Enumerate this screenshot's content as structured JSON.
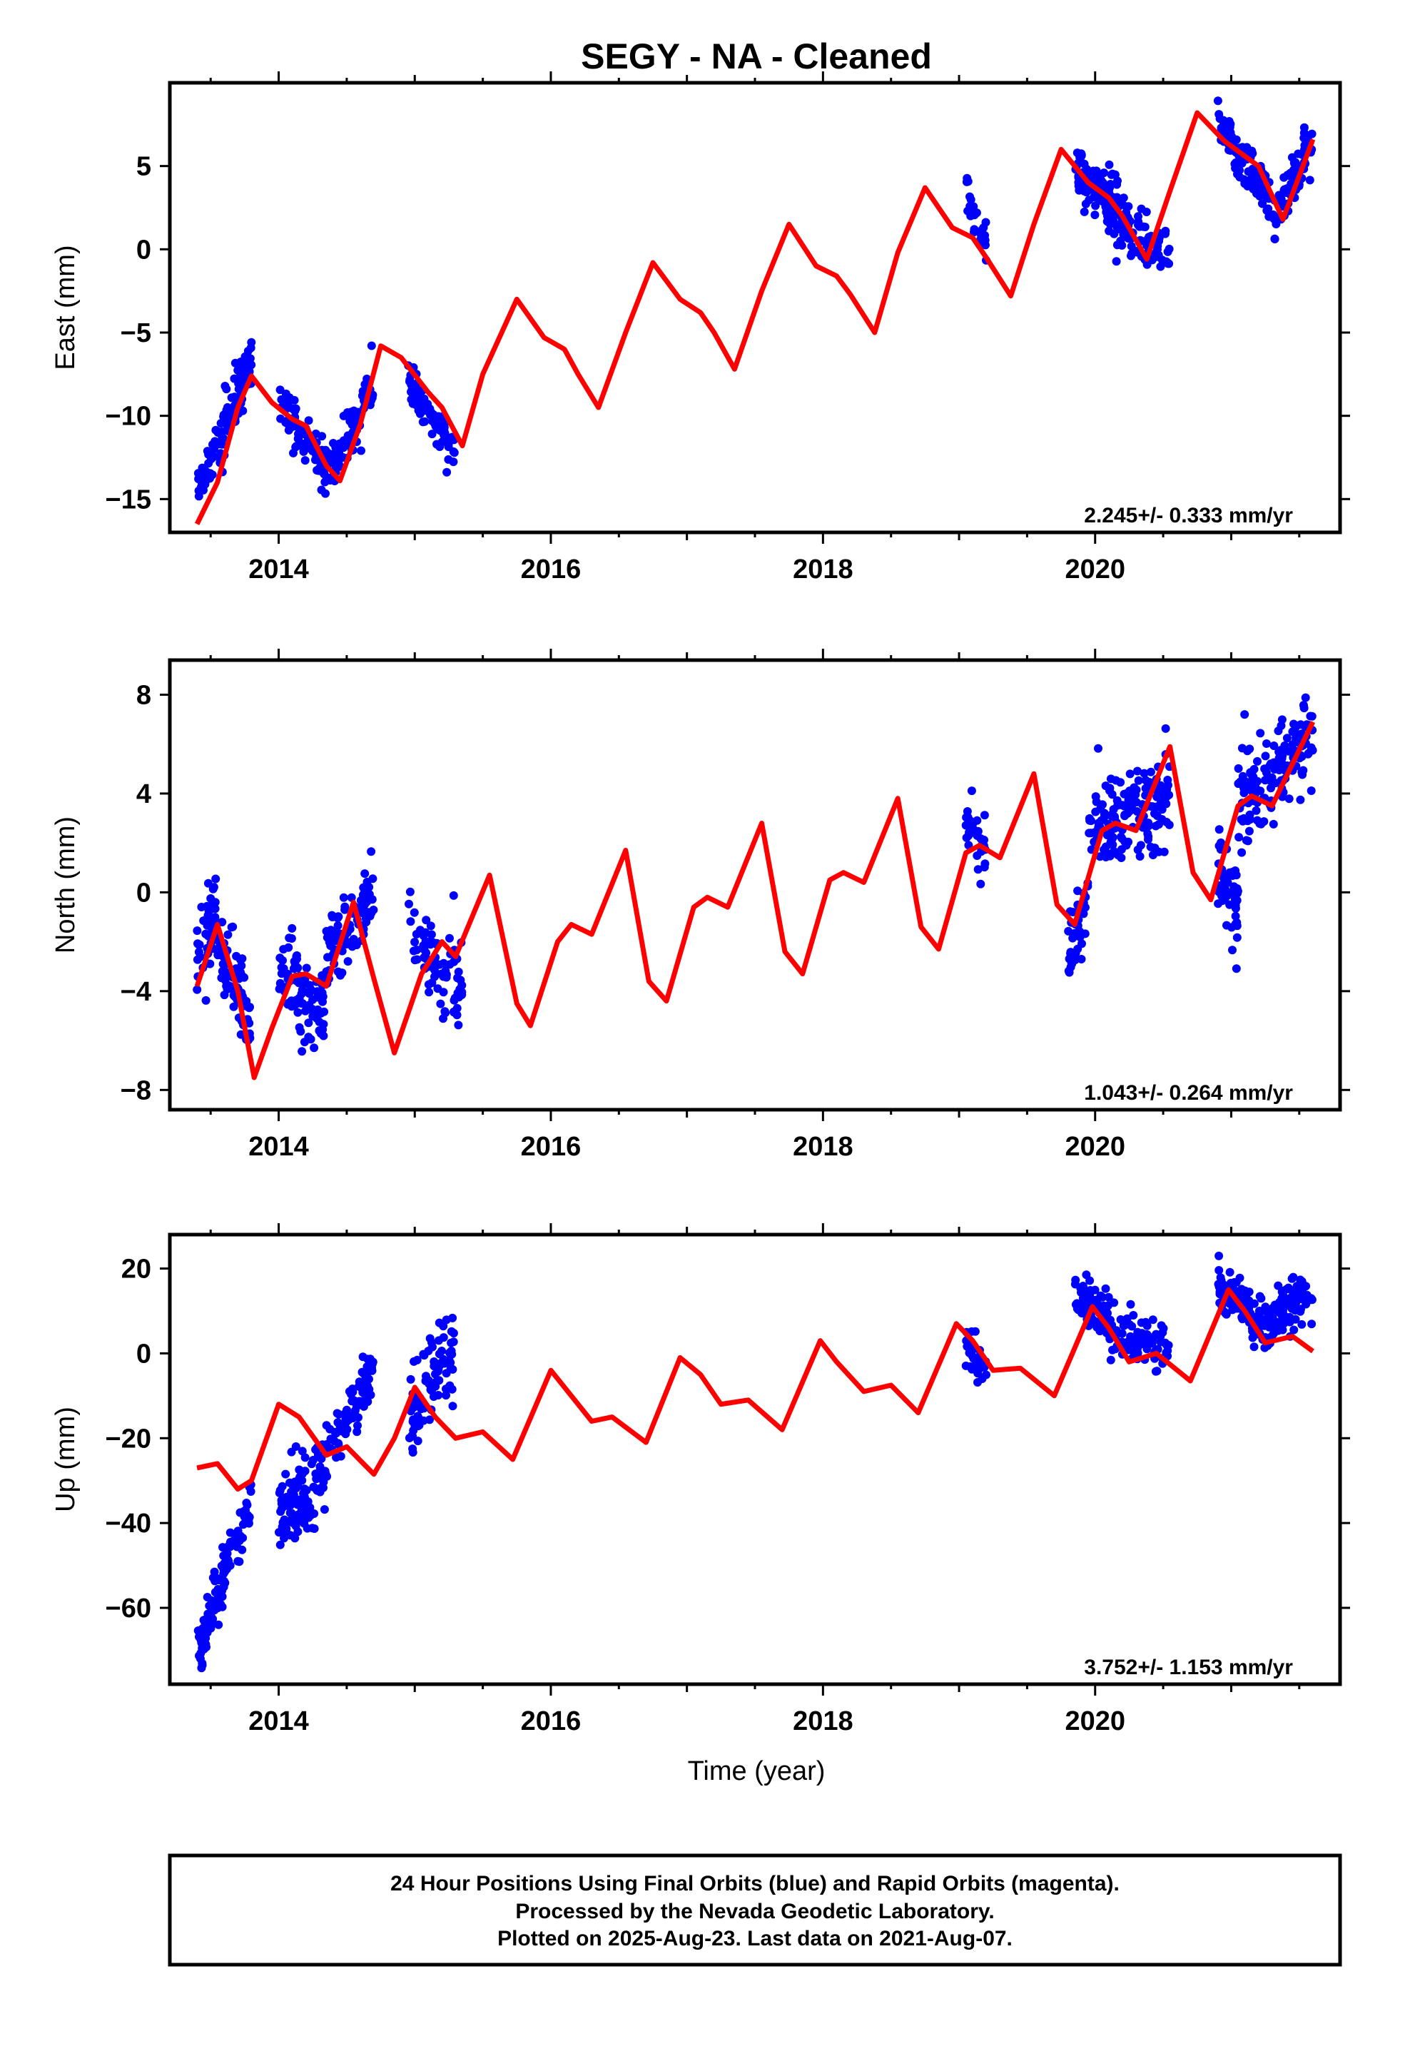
{
  "title": "SEGY  - NA - Cleaned",
  "xlabel": "Time (year)",
  "x_ticks": [
    "2014",
    "2016",
    "2018",
    "2020"
  ],
  "footer": {
    "line1": "24 Hour Positions Using Final Orbits (blue) and Rapid Orbits (magenta).",
    "line2": "Processed by the Nevada Geodetic Laboratory.",
    "line3": "Plotted on 2025-Aug-23. Last data on 2021-Aug-07."
  },
  "colors": {
    "points": "#0000ff",
    "model": "#ff0000",
    "frame": "#000000"
  },
  "chart_data": [
    {
      "type": "scatter",
      "ylabel": "East (mm)",
      "rate": "2.245+/- 0.333 mm/yr",
      "xlim": [
        2013.2,
        2021.8
      ],
      "ylim": [
        -17,
        10
      ],
      "y_ticks": [
        -15,
        -10,
        -5,
        0,
        5
      ],
      "model_line": {
        "color": "#ff0000",
        "points": [
          [
            2013.4,
            -16.5
          ],
          [
            2013.55,
            -14
          ],
          [
            2013.7,
            -9.5
          ],
          [
            2013.8,
            -7.6
          ],
          [
            2013.95,
            -9.2
          ],
          [
            2014.1,
            -10.2
          ],
          [
            2014.2,
            -10.6
          ],
          [
            2014.35,
            -13
          ],
          [
            2014.45,
            -13.9
          ],
          [
            2014.6,
            -10.5
          ],
          [
            2014.75,
            -5.8
          ],
          [
            2014.9,
            -6.5
          ],
          [
            2015.1,
            -8.6
          ],
          [
            2015.2,
            -9.5
          ],
          [
            2015.35,
            -11.8
          ],
          [
            2015.5,
            -7.5
          ],
          [
            2015.75,
            -3
          ],
          [
            2015.95,
            -5.3
          ],
          [
            2016.1,
            -6
          ],
          [
            2016.2,
            -7.5
          ],
          [
            2016.35,
            -9.5
          ],
          [
            2016.55,
            -5
          ],
          [
            2016.75,
            -0.8
          ],
          [
            2016.95,
            -3
          ],
          [
            2017.1,
            -3.8
          ],
          [
            2017.2,
            -5
          ],
          [
            2017.35,
            -7.2
          ],
          [
            2017.55,
            -2.5
          ],
          [
            2017.75,
            1.5
          ],
          [
            2017.95,
            -1
          ],
          [
            2018.1,
            -1.6
          ],
          [
            2018.2,
            -2.7
          ],
          [
            2018.38,
            -5
          ],
          [
            2018.55,
            -0.2
          ],
          [
            2018.75,
            3.7
          ],
          [
            2018.95,
            1.3
          ],
          [
            2019.1,
            0.7
          ],
          [
            2019.2,
            -0.5
          ],
          [
            2019.38,
            -2.8
          ],
          [
            2019.55,
            1.5
          ],
          [
            2019.75,
            6
          ],
          [
            2019.95,
            4
          ],
          [
            2020.1,
            3.1
          ],
          [
            2020.2,
            2
          ],
          [
            2020.38,
            -0.6
          ],
          [
            2020.55,
            3.5
          ],
          [
            2020.75,
            8.2
          ],
          [
            2020.95,
            6.5
          ],
          [
            2021.1,
            5.6
          ],
          [
            2021.2,
            5
          ],
          [
            2021.38,
            1.8
          ],
          [
            2021.55,
            5.5
          ],
          [
            2021.6,
            6.6
          ]
        ]
      },
      "segments": [
        {
          "start": 2013.4,
          "end": 2013.8,
          "y0": -14.8,
          "y1": -6.8,
          "spread": 1.4,
          "n": 130
        },
        {
          "start": 2014.0,
          "end": 2014.35,
          "y0": -8.6,
          "y1": -13.4,
          "spread": 1.3,
          "n": 90
        },
        {
          "start": 2014.35,
          "end": 2014.7,
          "y0": -13.8,
          "y1": -8.2,
          "spread": 1.3,
          "n": 90
        },
        {
          "start": 2014.95,
          "end": 2015.3,
          "y0": -8.2,
          "y1": -12.2,
          "spread": 1.1,
          "n": 80
        },
        {
          "start": 2019.05,
          "end": 2019.2,
          "y0": 3.2,
          "y1": 0.8,
          "spread": 1.2,
          "n": 30
        },
        {
          "start": 2019.85,
          "end": 2020.2,
          "y0": 4.6,
          "y1": 2.2,
          "spread": 1.4,
          "n": 130
        },
        {
          "start": 2020.2,
          "end": 2020.55,
          "y0": 1.5,
          "y1": -0.2,
          "spread": 1.3,
          "n": 70
        },
        {
          "start": 2020.9,
          "end": 2021.3,
          "y0": 7.5,
          "y1": 2.8,
          "spread": 1.2,
          "n": 120
        },
        {
          "start": 2021.3,
          "end": 2021.6,
          "y0": 1.5,
          "y1": 6.5,
          "spread": 1.4,
          "n": 90
        }
      ]
    },
    {
      "type": "scatter",
      "ylabel": "North (mm)",
      "rate": "1.043+/- 0.264 mm/yr",
      "xlim": [
        2013.2,
        2021.8
      ],
      "ylim": [
        -8.8,
        9.4
      ],
      "y_ticks": [
        -8,
        -4,
        0,
        4,
        8
      ],
      "model_line": {
        "color": "#ff0000",
        "points": [
          [
            2013.4,
            -3.8
          ],
          [
            2013.55,
            -1.3
          ],
          [
            2013.7,
            -4
          ],
          [
            2013.82,
            -7.5
          ],
          [
            2013.95,
            -5.5
          ],
          [
            2014.1,
            -3.4
          ],
          [
            2014.2,
            -3.3
          ],
          [
            2014.35,
            -3.8
          ],
          [
            2014.55,
            -0.4
          ],
          [
            2014.7,
            -3.5
          ],
          [
            2014.85,
            -6.5
          ],
          [
            2015.05,
            -3.3
          ],
          [
            2015.2,
            -2
          ],
          [
            2015.3,
            -2.6
          ],
          [
            2015.55,
            0.7
          ],
          [
            2015.75,
            -4.5
          ],
          [
            2015.85,
            -5.4
          ],
          [
            2016.05,
            -2
          ],
          [
            2016.15,
            -1.3
          ],
          [
            2016.3,
            -1.7
          ],
          [
            2016.55,
            1.7
          ],
          [
            2016.72,
            -3.6
          ],
          [
            2016.85,
            -4.4
          ],
          [
            2017.05,
            -0.6
          ],
          [
            2017.15,
            -0.2
          ],
          [
            2017.3,
            -0.6
          ],
          [
            2017.55,
            2.8
          ],
          [
            2017.72,
            -2.4
          ],
          [
            2017.85,
            -3.3
          ],
          [
            2018.05,
            0.5
          ],
          [
            2018.15,
            0.8
          ],
          [
            2018.3,
            0.4
          ],
          [
            2018.55,
            3.8
          ],
          [
            2018.72,
            -1.4
          ],
          [
            2018.85,
            -2.3
          ],
          [
            2019.05,
            1.6
          ],
          [
            2019.15,
            1.9
          ],
          [
            2019.3,
            1.4
          ],
          [
            2019.55,
            4.8
          ],
          [
            2019.72,
            -0.5
          ],
          [
            2019.85,
            -1.3
          ],
          [
            2020.05,
            2.5
          ],
          [
            2020.15,
            2.8
          ],
          [
            2020.3,
            2.5
          ],
          [
            2020.55,
            5.9
          ],
          [
            2020.72,
            0.8
          ],
          [
            2020.85,
            -0.3
          ],
          [
            2021.05,
            3.5
          ],
          [
            2021.15,
            3.9
          ],
          [
            2021.3,
            3.5
          ],
          [
            2021.6,
            6.9
          ]
        ]
      },
      "segments": [
        {
          "start": 2013.4,
          "end": 2013.55,
          "y0": -2.4,
          "y1": -0.6,
          "spread": 1.3,
          "n": 50
        },
        {
          "start": 2013.55,
          "end": 2013.8,
          "y0": -2.2,
          "y1": -5.2,
          "spread": 1.4,
          "n": 80
        },
        {
          "start": 2014.0,
          "end": 2014.35,
          "y0": -3.2,
          "y1": -4.8,
          "spread": 1.6,
          "n": 90
        },
        {
          "start": 2014.35,
          "end": 2014.7,
          "y0": -2.6,
          "y1": 0.2,
          "spread": 1.4,
          "n": 90
        },
        {
          "start": 2014.95,
          "end": 2015.35,
          "y0": -1.8,
          "y1": -3.8,
          "spread": 1.5,
          "n": 80
        },
        {
          "start": 2019.05,
          "end": 2019.2,
          "y0": 2.6,
          "y1": 1.5,
          "spread": 1.2,
          "n": 30
        },
        {
          "start": 2019.8,
          "end": 2019.95,
          "y0": -2.4,
          "y1": -0.6,
          "spread": 1.2,
          "n": 40
        },
        {
          "start": 2019.95,
          "end": 2020.55,
          "y0": 2.6,
          "y1": 3.8,
          "spread": 1.7,
          "n": 150
        },
        {
          "start": 2020.9,
          "end": 2021.05,
          "y0": 1.2,
          "y1": -0.8,
          "spread": 1.5,
          "n": 50
        },
        {
          "start": 2021.05,
          "end": 2021.6,
          "y0": 3.6,
          "y1": 6.3,
          "spread": 1.5,
          "n": 150
        }
      ]
    },
    {
      "type": "scatter",
      "ylabel": "Up (mm)",
      "rate": "3.752+/- 1.153 mm/yr",
      "xlim": [
        2013.2,
        2021.8
      ],
      "ylim": [
        -78,
        28
      ],
      "y_ticks": [
        -60,
        -40,
        -20,
        0,
        20
      ],
      "model_line": {
        "color": "#ff0000",
        "points": [
          [
            2013.4,
            -27
          ],
          [
            2013.55,
            -26
          ],
          [
            2013.7,
            -32
          ],
          [
            2013.8,
            -30
          ],
          [
            2014.0,
            -12
          ],
          [
            2014.15,
            -15
          ],
          [
            2014.35,
            -24
          ],
          [
            2014.5,
            -22
          ],
          [
            2014.7,
            -28.5
          ],
          [
            2014.85,
            -20
          ],
          [
            2015.0,
            -8
          ],
          [
            2015.15,
            -15
          ],
          [
            2015.3,
            -20
          ],
          [
            2015.5,
            -18.5
          ],
          [
            2015.72,
            -25
          ],
          [
            2016.0,
            -4
          ],
          [
            2016.15,
            -10
          ],
          [
            2016.3,
            -16
          ],
          [
            2016.45,
            -15
          ],
          [
            2016.7,
            -21
          ],
          [
            2016.95,
            -1
          ],
          [
            2017.1,
            -5
          ],
          [
            2017.25,
            -12
          ],
          [
            2017.45,
            -11
          ],
          [
            2017.7,
            -18
          ],
          [
            2017.98,
            3
          ],
          [
            2018.1,
            -2
          ],
          [
            2018.3,
            -9
          ],
          [
            2018.5,
            -7.5
          ],
          [
            2018.7,
            -14
          ],
          [
            2018.98,
            7
          ],
          [
            2019.1,
            3
          ],
          [
            2019.25,
            -4
          ],
          [
            2019.45,
            -3.5
          ],
          [
            2019.7,
            -10
          ],
          [
            2019.98,
            11
          ],
          [
            2020.1,
            6
          ],
          [
            2020.25,
            -2
          ],
          [
            2020.45,
            0
          ],
          [
            2020.7,
            -6.5
          ],
          [
            2020.98,
            15
          ],
          [
            2021.1,
            10
          ],
          [
            2021.25,
            2.5
          ],
          [
            2021.45,
            4
          ],
          [
            2021.6,
            0.5
          ]
        ]
      },
      "segments": [
        {
          "start": 2013.4,
          "end": 2013.8,
          "y0": -70,
          "y1": -35,
          "spread": 5,
          "n": 130
        },
        {
          "start": 2014.0,
          "end": 2014.35,
          "y0": -40,
          "y1": -27,
          "spread": 8,
          "n": 110
        },
        {
          "start": 2014.35,
          "end": 2014.7,
          "y0": -22,
          "y1": -5,
          "spread": 6,
          "n": 80
        },
        {
          "start": 2014.95,
          "end": 2015.3,
          "y0": -15,
          "y1": 3,
          "spread": 8,
          "n": 90
        },
        {
          "start": 2019.05,
          "end": 2019.2,
          "y0": 2,
          "y1": -4,
          "spread": 4,
          "n": 30
        },
        {
          "start": 2019.85,
          "end": 2020.1,
          "y0": 13,
          "y1": 10,
          "spread": 5,
          "n": 80
        },
        {
          "start": 2020.1,
          "end": 2020.55,
          "y0": 5,
          "y1": 1,
          "spread": 4.5,
          "n": 90
        },
        {
          "start": 2020.9,
          "end": 2021.15,
          "y0": 15,
          "y1": 10,
          "spread": 4.5,
          "n": 80
        },
        {
          "start": 2021.15,
          "end": 2021.6,
          "y0": 5,
          "y1": 15,
          "spread": 5,
          "n": 120
        }
      ]
    }
  ]
}
